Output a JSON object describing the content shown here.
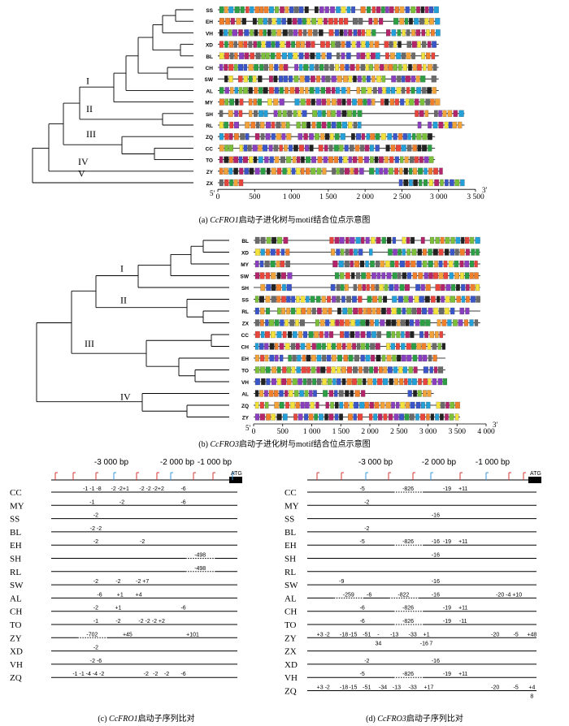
{
  "motif_colors": [
    "#e8463c",
    "#8a3fbf",
    "#f2a33a",
    "#2c9f45",
    "#3a56c8",
    "#222222",
    "#f3e23b",
    "#23a0d8",
    "#b3246a",
    "#7cbf3a",
    "#f07f2c",
    "#6a6a6a"
  ],
  "panel_a": {
    "caption_prefix": "(a)",
    "gene": "CcFRO1",
    "caption_suffix": "启动子进化树与motif结合位点示意图",
    "five_prime": "5′",
    "three_prime": "3′",
    "ticks": [
      "0",
      "500",
      "1 000",
      "1 500",
      "2 000",
      "2 500",
      "3 000",
      "3 500"
    ],
    "axis_max": 3500,
    "clades": [
      "I",
      "II",
      "III",
      "IV",
      "V"
    ],
    "rows": [
      {
        "label": "SS",
        "length": 3000
      },
      {
        "label": "EH",
        "length": 3000
      },
      {
        "label": "VH",
        "length": 3000
      },
      {
        "label": "XD",
        "length": 3000
      },
      {
        "label": "BL",
        "length": 3000
      },
      {
        "label": "CH",
        "length": 3000
      },
      {
        "label": "SW",
        "length": 3000
      },
      {
        "label": "AL",
        "length": 3000
      },
      {
        "label": "MY",
        "length": 3000
      },
      {
        "label": "SH",
        "length": 3350
      },
      {
        "label": "RL",
        "length": 3350
      },
      {
        "label": "ZQ",
        "length": 2950
      },
      {
        "label": "CC",
        "length": 2950
      },
      {
        "label": "TO",
        "length": 2950
      },
      {
        "label": "ZY",
        "length": 3050
      },
      {
        "label": "ZX",
        "length": 3350
      }
    ]
  },
  "panel_b": {
    "caption_prefix": "(b)",
    "gene": "CcFRO3",
    "caption_suffix": "启动子进化树与motif结合位点示意图",
    "five_prime": "5′",
    "three_prime": "3′",
    "ticks": [
      "0",
      "500",
      "1 000",
      "1 500",
      "2 000",
      "2 500",
      "3 000",
      "3 500",
      "4 000"
    ],
    "axis_max": 4000,
    "clades": [
      "I",
      "II",
      "III",
      "IV"
    ],
    "rows": [
      {
        "label": "BL",
        "length": 3900
      },
      {
        "label": "XD",
        "length": 3900
      },
      {
        "label": "MY",
        "length": 3900
      },
      {
        "label": "SW",
        "length": 3900
      },
      {
        "label": "SH",
        "length": 3900
      },
      {
        "label": "SS",
        "length": 3900
      },
      {
        "label": "RL",
        "length": 3900
      },
      {
        "label": "ZX",
        "length": 3900
      },
      {
        "label": "CC",
        "length": 3300
      },
      {
        "label": "CH",
        "length": 3300
      },
      {
        "label": "EH",
        "length": 3300
      },
      {
        "label": "TO",
        "length": 3300
      },
      {
        "label": "VH",
        "length": 3300
      },
      {
        "label": "AL",
        "length": 3100
      },
      {
        "label": "ZQ",
        "length": 3550
      },
      {
        "label": "ZY",
        "length": 3550
      }
    ]
  },
  "panel_c": {
    "caption_prefix": "(c)",
    "gene": "CcFRO1",
    "caption_suffix": "启动子序列比对",
    "scale_labels": [
      "-3 000 bp",
      "-2 000 bp",
      "-1 000 bp"
    ],
    "atg": "ATG",
    "rows": [
      {
        "label": "CC",
        "ann": [
          {
            "t": "-1 -1 -8",
            "x": 0.22
          },
          {
            "t": "-2 -2+1",
            "x": 0.37
          },
          {
            "t": "-2  -2 -2+2",
            "x": 0.54
          },
          {
            "t": "-6",
            "x": 0.71
          }
        ]
      },
      {
        "label": "MY",
        "ann": [
          {
            "t": "-1",
            "x": 0.22
          },
          {
            "t": "-2",
            "x": 0.38
          },
          {
            "t": "-6",
            "x": 0.71
          }
        ]
      },
      {
        "label": "SS",
        "ann": [
          {
            "t": "-2",
            "x": 0.24
          }
        ]
      },
      {
        "label": "BL",
        "ann": [
          {
            "t": "-2 -2",
            "x": 0.24
          }
        ]
      },
      {
        "label": "EH",
        "ann": [
          {
            "t": "-2",
            "x": 0.24
          },
          {
            "t": "-2",
            "x": 0.49
          }
        ]
      },
      {
        "label": "SH",
        "ann": [
          {
            "t": "-498",
            "x": 0.8
          }
        ]
      },
      {
        "label": "RL",
        "ann": [
          {
            "t": "-498",
            "x": 0.8
          }
        ]
      },
      {
        "label": "SW",
        "ann": [
          {
            "t": "-2",
            "x": 0.24
          },
          {
            "t": "-2",
            "x": 0.36
          },
          {
            "t": "-2 +7",
            "x": 0.49
          }
        ]
      },
      {
        "label": "AL",
        "ann": [
          {
            "t": "-6",
            "x": 0.26
          },
          {
            "t": "+1",
            "x": 0.37
          },
          {
            "t": "+4",
            "x": 0.47
          }
        ]
      },
      {
        "label": "CH",
        "ann": [
          {
            "t": "-2",
            "x": 0.24
          },
          {
            "t": "+1",
            "x": 0.36
          },
          {
            "t": "-6",
            "x": 0.71
          }
        ]
      },
      {
        "label": "TO",
        "ann": [
          {
            "t": "-1",
            "x": 0.24
          },
          {
            "t": "-2",
            "x": 0.36
          },
          {
            "t": "-2 -2 -2 +2",
            "x": 0.54
          }
        ]
      },
      {
        "label": "ZY",
        "ann": [
          {
            "t": "-702",
            "x": 0.22
          },
          {
            "t": "+45",
            "x": 0.41
          },
          {
            "t": "+101",
            "x": 0.76
          }
        ]
      },
      {
        "label": "XD",
        "ann": [
          {
            "t": "-2",
            "x": 0.24
          }
        ]
      },
      {
        "label": "VH",
        "ann": [
          {
            "t": "-2 -6",
            "x": 0.24
          }
        ]
      },
      {
        "label": "ZQ",
        "ann": [
          {
            "t": "-1 -1 -4 -4 -2",
            "x": 0.2
          },
          {
            "t": "-2",
            "x": 0.51
          },
          {
            "t": "-2",
            "x": 0.56
          },
          {
            "t": "-2",
            "x": 0.62
          },
          {
            "t": "-6",
            "x": 0.71
          }
        ]
      }
    ]
  },
  "panel_d": {
    "caption_prefix": "(d)",
    "gene": "CcFRO3",
    "caption_suffix": "启动子序列比对",
    "scale_labels": [
      "-3 000 bp",
      "-2 000 bp",
      "-1 000 bp"
    ],
    "atg": "ATG",
    "rows": [
      {
        "label": "CC",
        "ann": [
          {
            "t": "-5",
            "x": 0.24
          },
          {
            "t": "-826",
            "x": 0.44
          },
          {
            "t": "-19",
            "x": 0.61
          },
          {
            "t": "+11",
            "x": 0.68
          }
        ]
      },
      {
        "label": "MY",
        "ann": [
          {
            "t": "-2",
            "x": 0.26
          }
        ]
      },
      {
        "label": "SS",
        "ann": [
          {
            "t": "-16",
            "x": 0.56
          }
        ]
      },
      {
        "label": "BL",
        "ann": [
          {
            "t": "-2",
            "x": 0.26
          }
        ]
      },
      {
        "label": "EH",
        "ann": [
          {
            "t": "-5",
            "x": 0.24
          },
          {
            "t": "-826",
            "x": 0.44
          },
          {
            "t": "-16",
            "x": 0.56
          },
          {
            "t": "-19",
            "x": 0.61
          },
          {
            "t": "+11",
            "x": 0.68
          }
        ]
      },
      {
        "label": "SH",
        "ann": [
          {
            "t": "-16",
            "x": 0.56
          }
        ]
      },
      {
        "label": "RL",
        "ann": []
      },
      {
        "label": "SW",
        "ann": [
          {
            "t": "-9",
            "x": 0.15
          },
          {
            "t": "-16",
            "x": 0.56
          }
        ]
      },
      {
        "label": "AL",
        "ann": [
          {
            "t": "-259",
            "x": 0.18
          },
          {
            "t": "-6",
            "x": 0.27
          },
          {
            "t": "-822",
            "x": 0.42
          },
          {
            "t": "-16",
            "x": 0.56
          },
          {
            "t": "-20 -4 +10",
            "x": 0.88
          }
        ]
      },
      {
        "label": "CH",
        "ann": [
          {
            "t": "-6",
            "x": 0.24
          },
          {
            "t": "-826",
            "x": 0.44
          },
          {
            "t": "-19",
            "x": 0.61
          },
          {
            "t": "+11",
            "x": 0.68
          }
        ]
      },
      {
        "label": "TO",
        "ann": [
          {
            "t": "-6",
            "x": 0.24
          },
          {
            "t": "-826",
            "x": 0.44
          },
          {
            "t": "-19",
            "x": 0.61
          },
          {
            "t": "-11",
            "x": 0.68
          }
        ]
      },
      {
        "label": "ZY",
        "ann": [
          {
            "t": "+3 -2",
            "x": 0.07
          },
          {
            "t": "-18",
            "x": 0.16
          },
          {
            "t": "-15",
            "x": 0.2
          },
          {
            "t": "-51",
            "x": 0.26
          },
          {
            "t": "-",
            "x": 0.31
          },
          {
            "t": "-13",
            "x": 0.38
          },
          {
            "t": "-33",
            "x": 0.46
          },
          {
            "t": "+1",
            "x": 0.52
          },
          {
            "t": "-20",
            "x": 0.82
          },
          {
            "t": "-5",
            "x": 0.91
          },
          {
            "t": "+48",
            "x": 0.98
          }
        ],
        "below": [
          {
            "t": "34",
            "x": 0.31
          },
          {
            "t": "-16",
            "x": 0.51
          },
          {
            "t": "7",
            "x": 0.54
          }
        ]
      },
      {
        "label": "ZX",
        "ann": []
      },
      {
        "label": "XD",
        "ann": [
          {
            "t": "-2",
            "x": 0.26
          },
          {
            "t": "-16",
            "x": 0.56
          }
        ]
      },
      {
        "label": "VH",
        "ann": [
          {
            "t": "-5",
            "x": 0.24
          },
          {
            "t": "-826",
            "x": 0.44
          },
          {
            "t": "-19",
            "x": 0.61
          },
          {
            "t": "+11",
            "x": 0.68
          }
        ]
      },
      {
        "label": "ZQ",
        "ann": [
          {
            "t": "+3 -2",
            "x": 0.07
          },
          {
            "t": "-18",
            "x": 0.16
          },
          {
            "t": "-15",
            "x": 0.2
          },
          {
            "t": "-51",
            "x": 0.26
          },
          {
            "t": "-34",
            "x": 0.33
          },
          {
            "t": "-13",
            "x": 0.39
          },
          {
            "t": "-33",
            "x": 0.46
          },
          {
            "t": "+17",
            "x": 0.53
          },
          {
            "t": "-20",
            "x": 0.82
          },
          {
            "t": "-5",
            "x": 0.91
          },
          {
            "t": "+4",
            "x": 0.98
          }
        ],
        "below": [
          {
            "t": "8",
            "x": 0.98
          }
        ]
      }
    ]
  }
}
